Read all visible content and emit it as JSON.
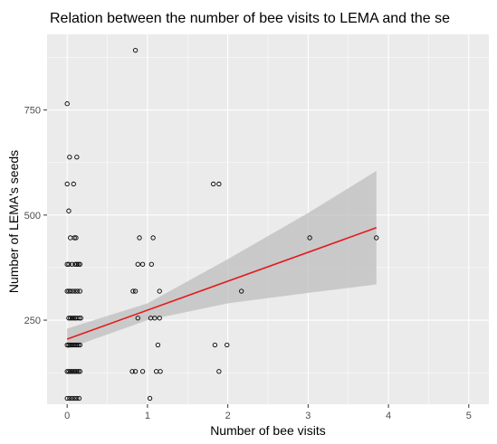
{
  "chart_data": {
    "type": "scatter",
    "title": "Relation between the number of bee visits to LEMA and the se",
    "xlabel": "Number of bee visits",
    "ylabel": "Number of LEMA's seeds",
    "xlim": [
      -0.25,
      5.25
    ],
    "ylim": [
      50,
      930
    ],
    "x_ticks": [
      0,
      1,
      2,
      3,
      4,
      5
    ],
    "x_tick_labels": [
      "0",
      "1",
      "2",
      "3",
      "4",
      "5"
    ],
    "y_ticks": [
      250,
      500,
      750
    ],
    "y_tick_labels": [
      "250",
      "500",
      "750"
    ],
    "grid": true,
    "panel_background": "#ebebeb",
    "grid_color": "#ffffff",
    "point_color": "#000000",
    "fit_line_color": "#e31a1c",
    "confidence_band_color": "#bdbdbd",
    "points": [
      {
        "x": 0.0,
        "y": 765
      },
      {
        "x": 0.03,
        "y": 638
      },
      {
        "x": 0.12,
        "y": 638
      },
      {
        "x": 0.0,
        "y": 574
      },
      {
        "x": 0.08,
        "y": 574
      },
      {
        "x": 0.02,
        "y": 510
      },
      {
        "x": 0.04,
        "y": 446
      },
      {
        "x": 0.09,
        "y": 446
      },
      {
        "x": 0.11,
        "y": 446
      },
      {
        "x": 0.0,
        "y": 383
      },
      {
        "x": 0.02,
        "y": 383
      },
      {
        "x": 0.06,
        "y": 383
      },
      {
        "x": 0.1,
        "y": 383
      },
      {
        "x": 0.12,
        "y": 383
      },
      {
        "x": 0.14,
        "y": 383
      },
      {
        "x": 0.16,
        "y": 383
      },
      {
        "x": 0.0,
        "y": 319
      },
      {
        "x": 0.02,
        "y": 319
      },
      {
        "x": 0.04,
        "y": 319
      },
      {
        "x": 0.07,
        "y": 319
      },
      {
        "x": 0.1,
        "y": 319
      },
      {
        "x": 0.13,
        "y": 319
      },
      {
        "x": 0.16,
        "y": 319
      },
      {
        "x": 0.02,
        "y": 255
      },
      {
        "x": 0.04,
        "y": 255
      },
      {
        "x": 0.06,
        "y": 255
      },
      {
        "x": 0.08,
        "y": 255
      },
      {
        "x": 0.1,
        "y": 255
      },
      {
        "x": 0.12,
        "y": 255
      },
      {
        "x": 0.15,
        "y": 255
      },
      {
        "x": 0.17,
        "y": 255
      },
      {
        "x": 0.0,
        "y": 191
      },
      {
        "x": 0.02,
        "y": 191
      },
      {
        "x": 0.04,
        "y": 191
      },
      {
        "x": 0.06,
        "y": 191
      },
      {
        "x": 0.08,
        "y": 191
      },
      {
        "x": 0.1,
        "y": 191
      },
      {
        "x": 0.12,
        "y": 191
      },
      {
        "x": 0.14,
        "y": 191
      },
      {
        "x": 0.16,
        "y": 191
      },
      {
        "x": 0.0,
        "y": 128
      },
      {
        "x": 0.02,
        "y": 128
      },
      {
        "x": 0.04,
        "y": 128
      },
      {
        "x": 0.06,
        "y": 128
      },
      {
        "x": 0.08,
        "y": 128
      },
      {
        "x": 0.1,
        "y": 128
      },
      {
        "x": 0.12,
        "y": 128
      },
      {
        "x": 0.14,
        "y": 128
      },
      {
        "x": 0.16,
        "y": 128
      },
      {
        "x": 0.0,
        "y": 64
      },
      {
        "x": 0.03,
        "y": 64
      },
      {
        "x": 0.06,
        "y": 64
      },
      {
        "x": 0.09,
        "y": 64
      },
      {
        "x": 0.12,
        "y": 64
      },
      {
        "x": 0.15,
        "y": 64
      },
      {
        "x": 0.85,
        "y": 892
      },
      {
        "x": 0.9,
        "y": 446
      },
      {
        "x": 1.07,
        "y": 446
      },
      {
        "x": 0.88,
        "y": 383
      },
      {
        "x": 0.94,
        "y": 383
      },
      {
        "x": 1.05,
        "y": 383
      },
      {
        "x": 0.82,
        "y": 319
      },
      {
        "x": 0.85,
        "y": 319
      },
      {
        "x": 1.15,
        "y": 319
      },
      {
        "x": 0.88,
        "y": 255
      },
      {
        "x": 1.04,
        "y": 255
      },
      {
        "x": 1.09,
        "y": 255
      },
      {
        "x": 1.15,
        "y": 255
      },
      {
        "x": 1.13,
        "y": 191
      },
      {
        "x": 0.81,
        "y": 128
      },
      {
        "x": 0.85,
        "y": 128
      },
      {
        "x": 0.94,
        "y": 128
      },
      {
        "x": 1.11,
        "y": 128
      },
      {
        "x": 1.16,
        "y": 128
      },
      {
        "x": 1.03,
        "y": 64
      },
      {
        "x": 1.82,
        "y": 574
      },
      {
        "x": 1.89,
        "y": 574
      },
      {
        "x": 1.84,
        "y": 191
      },
      {
        "x": 1.99,
        "y": 191
      },
      {
        "x": 1.89,
        "y": 128
      },
      {
        "x": 2.17,
        "y": 319
      },
      {
        "x": 3.02,
        "y": 446
      },
      {
        "x": 3.85,
        "y": 446
      }
    ],
    "fit_line": {
      "x": [
        0.0,
        3.85
      ],
      "y": [
        205,
        470
      ]
    },
    "confidence_band": {
      "x": [
        0.0,
        1.0,
        2.0,
        3.0,
        3.85
      ],
      "upper": [
        230,
        290,
        395,
        505,
        605
      ],
      "lower": [
        182,
        250,
        290,
        315,
        335
      ]
    }
  }
}
